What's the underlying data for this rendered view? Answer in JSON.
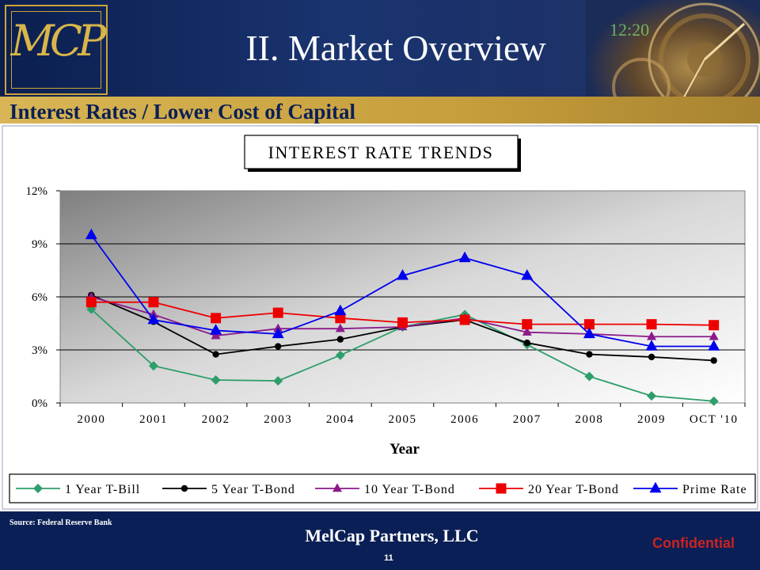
{
  "header": {
    "logo_text": "MCP",
    "title": "II.  Market Overview",
    "subtitle": "Interest Rates / Lower Cost of Capital"
  },
  "chart_data": {
    "type": "line",
    "title": "INTEREST RATE TRENDS",
    "xlabel": "Year",
    "ylabel": "",
    "categories": [
      "2000",
      "2001",
      "2002",
      "2003",
      "2004",
      "2005",
      "2006",
      "2007",
      "2008",
      "2009",
      "OCT '10"
    ],
    "y_ticks": [
      "0%",
      "3%",
      "6%",
      "9%",
      "12%"
    ],
    "ylim": [
      0,
      12
    ],
    "grid": true,
    "legend_position": "bottom",
    "series": [
      {
        "name": "1 Year T-Bill",
        "color": "#2e9e6a",
        "marker": "diamond",
        "values": [
          5.3,
          2.1,
          1.3,
          1.25,
          2.7,
          4.3,
          5.0,
          3.3,
          1.5,
          0.4,
          0.1
        ]
      },
      {
        "name": "5 Year T-Bond",
        "color": "#000000",
        "marker": "circle",
        "values": [
          6.1,
          4.6,
          2.75,
          3.2,
          3.6,
          4.3,
          4.7,
          3.4,
          2.75,
          2.6,
          2.4
        ]
      },
      {
        "name": "10 Year T-Bond",
        "color": "#8b1a8b",
        "marker": "triangle",
        "values": [
          6.0,
          5.0,
          3.8,
          4.2,
          4.2,
          4.3,
          4.8,
          4.0,
          3.9,
          3.75,
          3.75
        ]
      },
      {
        "name": "20 Year T-Bond",
        "color": "#ee0000",
        "marker": "square",
        "values": [
          5.7,
          5.7,
          4.8,
          5.1,
          4.8,
          4.55,
          4.7,
          4.45,
          4.45,
          4.45,
          4.4
        ]
      },
      {
        "name": "Prime Rate",
        "color": "#0000ee",
        "marker": "triangle",
        "values": [
          9.5,
          4.7,
          4.1,
          3.9,
          5.2,
          7.2,
          8.2,
          7.2,
          3.9,
          3.2,
          3.2
        ]
      }
    ]
  },
  "footer": {
    "source": "Source: Federal Reserve Bank",
    "company": "MelCap Partners, LLC",
    "page": "11",
    "confidential": "Confidential"
  }
}
